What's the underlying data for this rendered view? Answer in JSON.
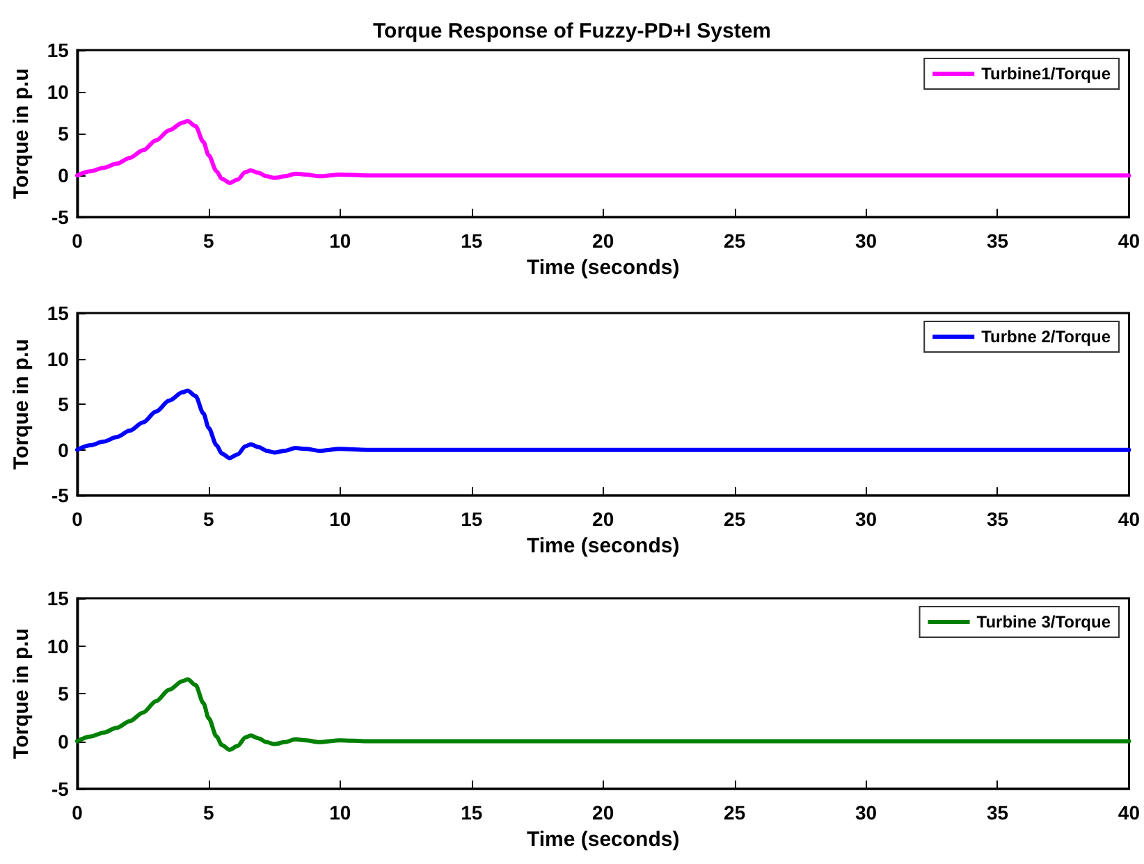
{
  "chart_data": [
    {
      "type": "line",
      "title": "Torque Response of Fuzzy-PD+I System",
      "xlabel": "Time (seconds)",
      "ylabel": "Torque in p.u",
      "legend": "top right",
      "grid": false,
      "marker": "none",
      "line_style": "solid",
      "xlim": [
        0,
        40
      ],
      "ylim": [
        -5,
        15
      ],
      "xticks": [
        0,
        5,
        10,
        15,
        20,
        25,
        30,
        35,
        40
      ],
      "yticks": [
        -5,
        0,
        5,
        10,
        15
      ],
      "x": [
        0,
        0.5,
        1,
        1.5,
        2,
        2.5,
        3,
        3.5,
        4,
        4.2,
        4.5,
        4.8,
        5,
        5.3,
        5.5,
        5.8,
        6.1,
        6.4,
        6.6,
        6.9,
        7.2,
        7.5,
        7.9,
        8.3,
        8.7,
        9.2,
        10,
        11,
        12,
        15,
        20,
        30,
        40
      ],
      "series": [
        {
          "name": "Turbine1/Torque",
          "color": "#ff00ff",
          "values": [
            0,
            0.5,
            0.9,
            1.4,
            2.1,
            3.0,
            4.2,
            5.4,
            6.3,
            6.5,
            5.9,
            4.0,
            2.4,
            0.5,
            -0.4,
            -0.9,
            -0.5,
            0.4,
            0.6,
            0.3,
            -0.1,
            -0.3,
            -0.1,
            0.2,
            0.1,
            -0.1,
            0.1,
            0,
            0,
            0,
            0,
            0,
            0
          ]
        }
      ]
    },
    {
      "type": "line",
      "xlabel": "Time (seconds)",
      "ylabel": "Torque in p.u",
      "legend": "top right",
      "grid": false,
      "marker": "none",
      "line_style": "solid",
      "xlim": [
        0,
        40
      ],
      "ylim": [
        -5,
        15
      ],
      "xticks": [
        0,
        5,
        10,
        15,
        20,
        25,
        30,
        35,
        40
      ],
      "yticks": [
        -5,
        0,
        5,
        10,
        15
      ],
      "x": [
        0,
        0.5,
        1,
        1.5,
        2,
        2.5,
        3,
        3.5,
        4,
        4.2,
        4.5,
        4.8,
        5,
        5.3,
        5.5,
        5.8,
        6.1,
        6.4,
        6.6,
        6.9,
        7.2,
        7.5,
        7.9,
        8.3,
        8.7,
        9.2,
        10,
        11,
        12,
        15,
        20,
        30,
        40
      ],
      "series": [
        {
          "name": "Turbne 2/Torque",
          "color": "#0000ff",
          "values": [
            0,
            0.5,
            0.9,
            1.4,
            2.1,
            3.0,
            4.2,
            5.4,
            6.3,
            6.5,
            5.9,
            4.0,
            2.4,
            0.5,
            -0.4,
            -0.9,
            -0.5,
            0.4,
            0.6,
            0.3,
            -0.1,
            -0.3,
            -0.1,
            0.2,
            0.1,
            -0.1,
            0.1,
            0,
            0,
            0,
            0,
            0,
            0
          ]
        }
      ]
    },
    {
      "type": "line",
      "xlabel": "Time (seconds)",
      "ylabel": "Torque in p.u",
      "legend": "top right",
      "grid": false,
      "marker": "none",
      "line_style": "solid",
      "xlim": [
        0,
        40
      ],
      "ylim": [
        -5,
        15
      ],
      "xticks": [
        0,
        5,
        10,
        15,
        20,
        25,
        30,
        35,
        40
      ],
      "yticks": [
        -5,
        0,
        5,
        10,
        15
      ],
      "x": [
        0,
        0.5,
        1,
        1.5,
        2,
        2.5,
        3,
        3.5,
        4,
        4.2,
        4.5,
        4.8,
        5,
        5.3,
        5.5,
        5.8,
        6.1,
        6.4,
        6.6,
        6.9,
        7.2,
        7.5,
        7.9,
        8.3,
        8.7,
        9.2,
        10,
        11,
        12,
        15,
        20,
        30,
        40
      ],
      "series": [
        {
          "name": "Turbine 3/Torque",
          "color": "#008000",
          "values": [
            0,
            0.5,
            0.9,
            1.4,
            2.1,
            3.0,
            4.2,
            5.4,
            6.3,
            6.5,
            5.9,
            4.0,
            2.4,
            0.5,
            -0.4,
            -0.9,
            -0.5,
            0.4,
            0.6,
            0.3,
            -0.1,
            -0.3,
            -0.1,
            0.2,
            0.1,
            -0.1,
            0.1,
            0,
            0,
            0,
            0,
            0,
            0
          ]
        }
      ]
    }
  ]
}
